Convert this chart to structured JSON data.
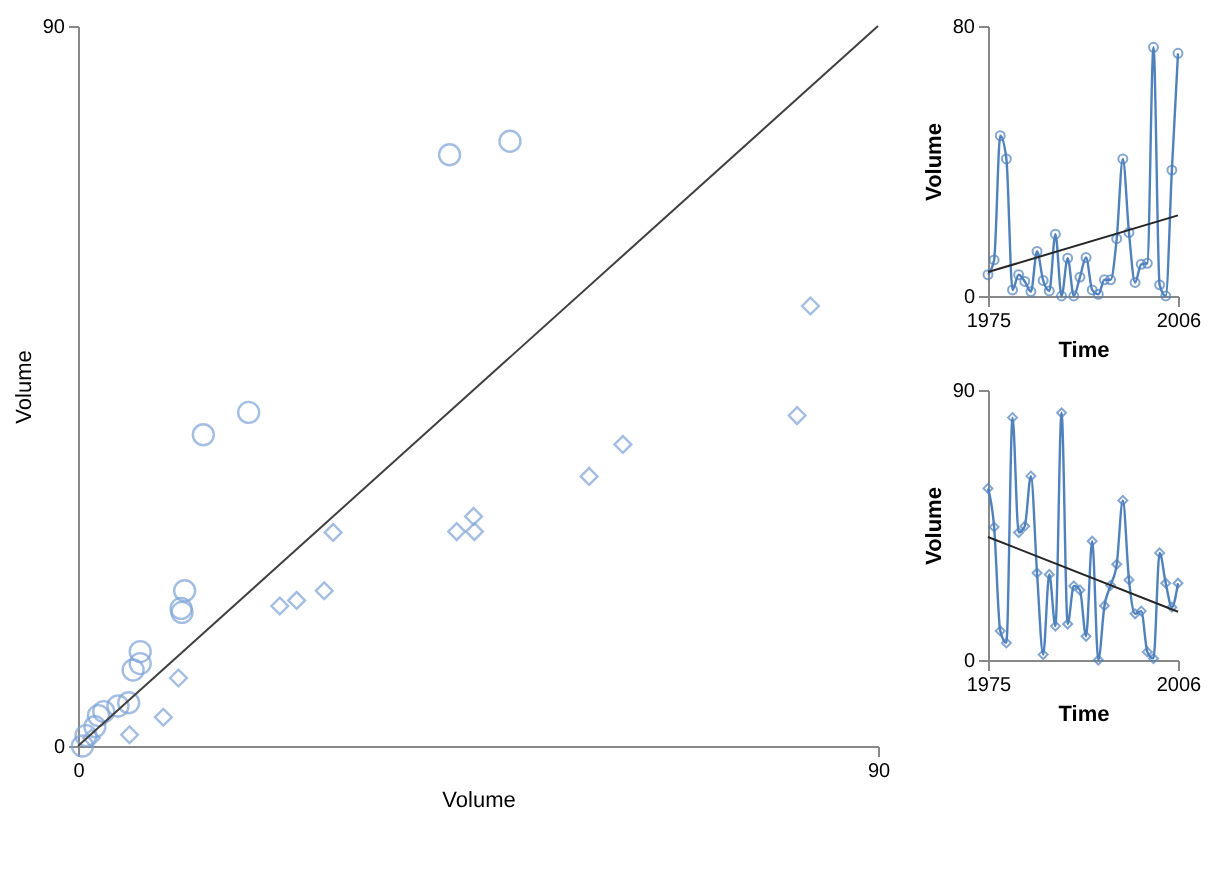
{
  "chart_data": [
    {
      "type": "scatter",
      "xlabel": "Volume",
      "ylabel": "Volume",
      "xlim": [
        0,
        90
      ],
      "ylim": [
        0,
        90
      ],
      "xticks": [
        0,
        90
      ],
      "yticks": [
        0,
        90
      ],
      "series": [
        {
          "marker": "circle",
          "color": "#7da3d6",
          "x": [
            41.8,
            48.6,
            14.1,
            19.2,
            12.0,
            11.6,
            11.7,
            7.0,
            6.2,
            7.0,
            5.7,
            4.5,
            2.9,
            2.3,
            1.9,
            0.9,
            0.5
          ],
          "values": [
            73.9,
            75.6,
            38.9,
            41.7,
            19.4,
            17.2,
            16.7,
            11.8,
            9.5,
            10.3,
            5.4,
            5.0,
            4.3,
            3.8,
            2.4,
            1.3,
            0
          ]
        },
        {
          "marker": "diamond",
          "color": "#7da3d6",
          "x": [
            82.4,
            80.9,
            44.5,
            42.6,
            44.6,
            28.7,
            27.7,
            24.6,
            22.7,
            11.3,
            9.6,
            5.8,
            1.5,
            57.5,
            61.3
          ],
          "values": [
            55.0,
            41.3,
            28.7,
            26.8,
            26.8,
            26.7,
            19.4,
            18.2,
            17.5,
            8.5,
            3.6,
            1.4,
            1.0,
            33.7,
            37.7
          ]
        },
        {
          "type": "line",
          "marker": "none",
          "color": "#404040",
          "x": [
            0,
            90
          ],
          "values": [
            0,
            90
          ]
        }
      ]
    },
    {
      "type": "line",
      "xlabel": "Time",
      "ylabel": "Volume",
      "xlim": [
        1975,
        2006
      ],
      "ylim": [
        0,
        80
      ],
      "xticks": [
        1975,
        2006
      ],
      "yticks": [
        0,
        80
      ],
      "x": [
        1975,
        1976,
        1977,
        1978,
        1979,
        1980,
        1981,
        1982,
        1983,
        1984,
        1985,
        1986,
        1987,
        1988,
        1989,
        1990,
        1991,
        1992,
        1993,
        1994,
        1995,
        1996,
        1997,
        1998,
        1999,
        2000,
        2001,
        2002,
        2003,
        2004,
        2005,
        2006
      ],
      "series": [
        {
          "marker": "circle",
          "color": "#4f81bd",
          "values": [
            6.3,
            10.7,
            47.5,
            40.6,
            1.8,
            6.3,
            4.3,
            1.3,
            13.2,
            4.6,
            1.5,
            18.3,
            0,
            11.2,
            0,
            5.6,
            11.4,
            1.8,
            0.5,
            4.8,
            4.8,
            17,
            40.6,
            18.8,
            4,
            9.4,
            9.7,
            73.7,
            3.3,
            0,
            37.3,
            71.9
          ]
        },
        {
          "type": "line",
          "marker": "none",
          "color": "#262626",
          "x": [
            1975,
            2006
          ],
          "values": [
            7.1,
            23.9
          ]
        }
      ]
    },
    {
      "type": "line",
      "xlabel": "Time",
      "ylabel": "Volume",
      "xlim": [
        1975,
        2006
      ],
      "ylim": [
        0,
        90
      ],
      "xticks": [
        1975,
        2006
      ],
      "yticks": [
        0,
        90
      ],
      "x": [
        1975,
        1976,
        1977,
        1978,
        1979,
        1980,
        1981,
        1982,
        1983,
        1984,
        1985,
        1986,
        1987,
        1988,
        1989,
        1990,
        1991,
        1992,
        1993,
        1994,
        1995,
        1996,
        1997,
        1998,
        1999,
        2000,
        2001,
        2002,
        2003,
        2004,
        2005,
        2006
      ],
      "series": [
        {
          "marker": "diamond",
          "color": "#4f81bd",
          "values": [
            57.2,
            44.3,
            9.7,
            5.7,
            80.8,
            42.5,
            44.6,
            61.3,
            29,
            1.8,
            28.5,
            11.3,
            82.4,
            12,
            24.7,
            23.3,
            7.9,
            39.6,
            0,
            18.1,
            24.9,
            31.9,
            53.2,
            26.7,
            15.4,
            16.3,
            2.7,
            0.5,
            35.7,
            25.6,
            17.6,
            25.6
          ]
        },
        {
          "type": "line",
          "marker": "none",
          "color": "#262626",
          "x": [
            1975,
            2006
          ],
          "values": [
            41,
            16.1
          ]
        }
      ]
    }
  ]
}
